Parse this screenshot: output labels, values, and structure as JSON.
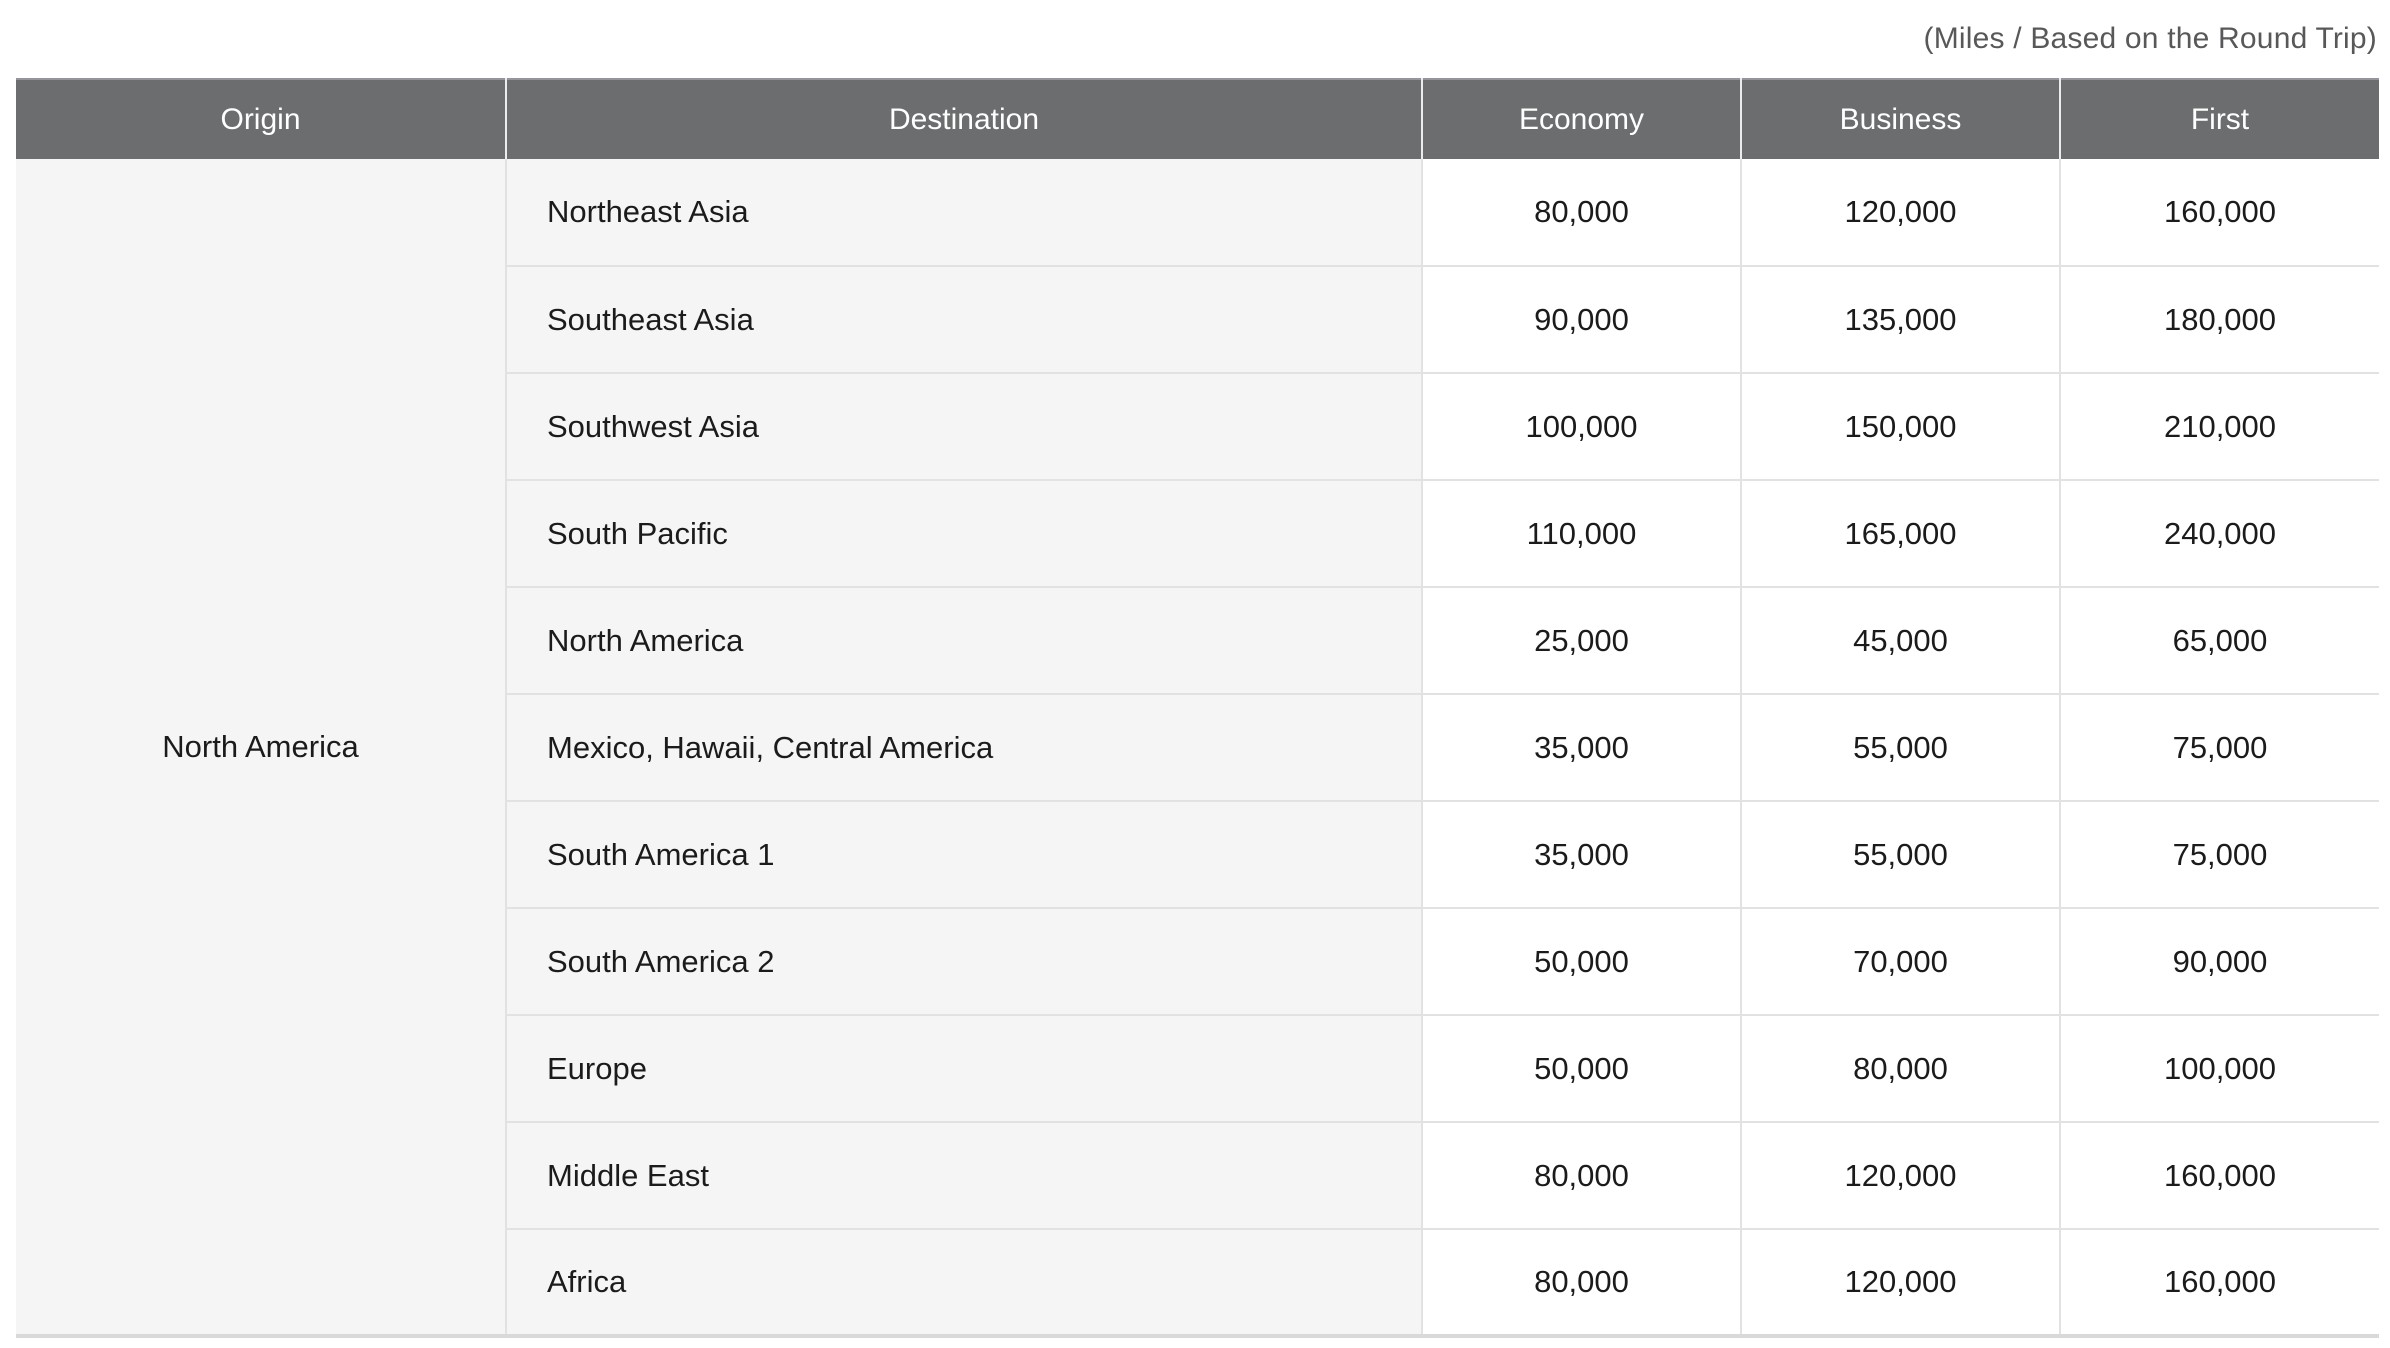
{
  "caption": "(Miles / Based on the Round Trip)",
  "colors": {
    "header_bg": "#6c6d6f",
    "header_text": "#ffffff",
    "cell_bg": "#f5f5f6",
    "value_bg": "#ffffff",
    "divider": "#e2e2e2",
    "bottom_border": "#d9d9d9",
    "text": "#1b1b1b",
    "caption_color": "#58585a"
  },
  "table": {
    "columns": [
      "Origin",
      "Destination",
      "Economy",
      "Business",
      "First"
    ],
    "origin": "North America",
    "rows": [
      {
        "destination": "Northeast Asia",
        "economy": "80,000",
        "business": "120,000",
        "first": "160,000"
      },
      {
        "destination": "Southeast Asia",
        "economy": "90,000",
        "business": "135,000",
        "first": "180,000"
      },
      {
        "destination": "Southwest Asia",
        "economy": "100,000",
        "business": "150,000",
        "first": "210,000"
      },
      {
        "destination": "South Pacific",
        "economy": "110,000",
        "business": "165,000",
        "first": "240,000"
      },
      {
        "destination": "North America",
        "economy": "25,000",
        "business": "45,000",
        "first": "65,000"
      },
      {
        "destination": "Mexico, Hawaii, Central America",
        "economy": "35,000",
        "business": "55,000",
        "first": "75,000"
      },
      {
        "destination": "South America 1",
        "economy": "35,000",
        "business": "55,000",
        "first": "75,000"
      },
      {
        "destination": "South America 2",
        "economy": "50,000",
        "business": "70,000",
        "first": "90,000"
      },
      {
        "destination": "Europe",
        "economy": "50,000",
        "business": "80,000",
        "first": "100,000"
      },
      {
        "destination": "Middle East",
        "economy": "80,000",
        "business": "120,000",
        "first": "160,000"
      },
      {
        "destination": "Africa",
        "economy": "80,000",
        "business": "120,000",
        "first": "160,000"
      }
    ]
  }
}
